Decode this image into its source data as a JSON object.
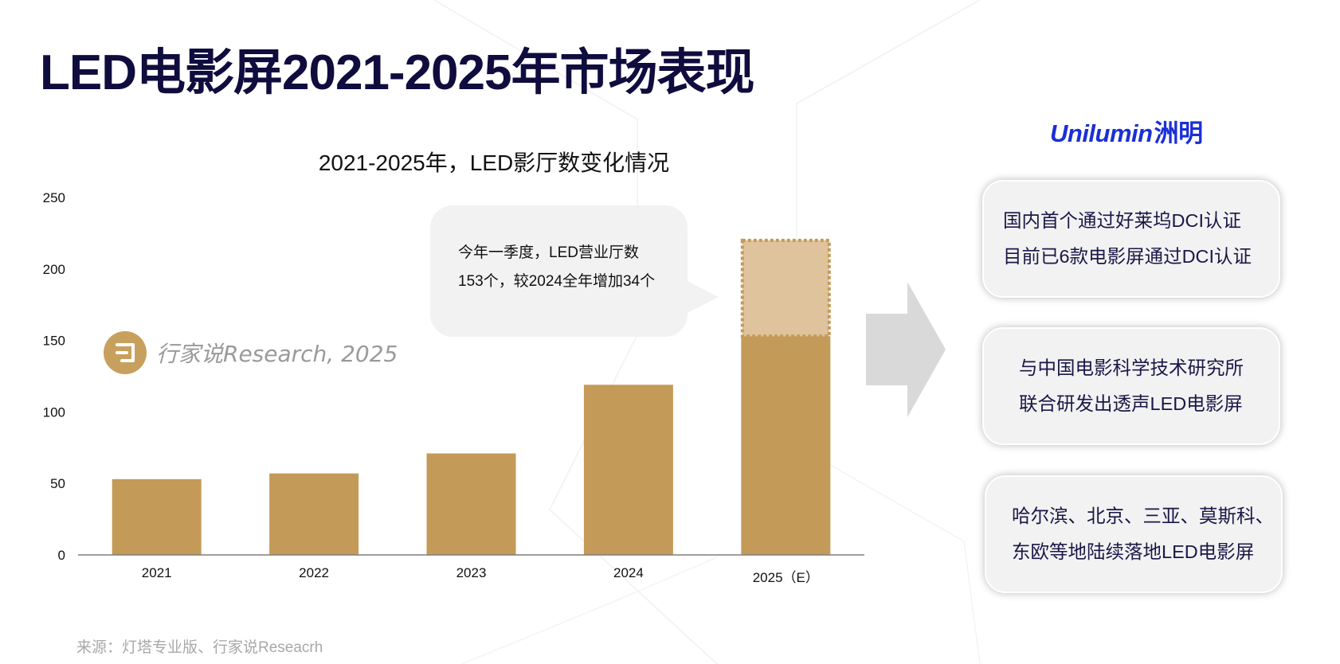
{
  "page_title": "LED电影屏2021-2025年市场表现",
  "source": "来源：灯塔专业版、行家说Reseacrh",
  "watermark": {
    "logo_glyph": "口",
    "text": "行家说Research, 2025"
  },
  "brand": {
    "name_en": "Unilumin",
    "name_cn": "洲明"
  },
  "callout": {
    "lines": [
      "今年一季度，LED营业厅数",
      "153个，较2024全年增加34个"
    ]
  },
  "cards": [
    {
      "lines": [
        "国内首个通过好莱坞DCI认证",
        "目前已6款电影屏通过DCI认证"
      ]
    },
    {
      "lines": [
        "与中国电影科学技术研究所",
        "联合研发出透声LED电影屏"
      ]
    },
    {
      "lines": [
        "哈尔滨、北京、三亚、莫斯科、",
        "东欧等地陆续落地LED电影屏"
      ]
    }
  ],
  "colors": {
    "bar": "#c49a58",
    "bar_estimate": "#dfc39c",
    "bar_estimate_border": "#c49a58",
    "title": "#0f0c3e",
    "brand": "#1b2fd6",
    "arrow": "#d9d9d9",
    "callout_bg": "#f2f2f2"
  },
  "chart_data": {
    "type": "bar",
    "title": "2021-2025年，LED影厅数变化情况",
    "categories": [
      "2021",
      "2022",
      "2023",
      "2024",
      "2025（E）"
    ],
    "values": [
      53,
      57,
      71,
      119,
      153
    ],
    "estimate": {
      "category": "2025（E）",
      "total": 220
    },
    "ylim": [
      0,
      250
    ],
    "yticks": [
      0,
      50,
      100,
      150,
      200,
      250
    ],
    "xlabel": "",
    "ylabel": "",
    "grid": false
  }
}
